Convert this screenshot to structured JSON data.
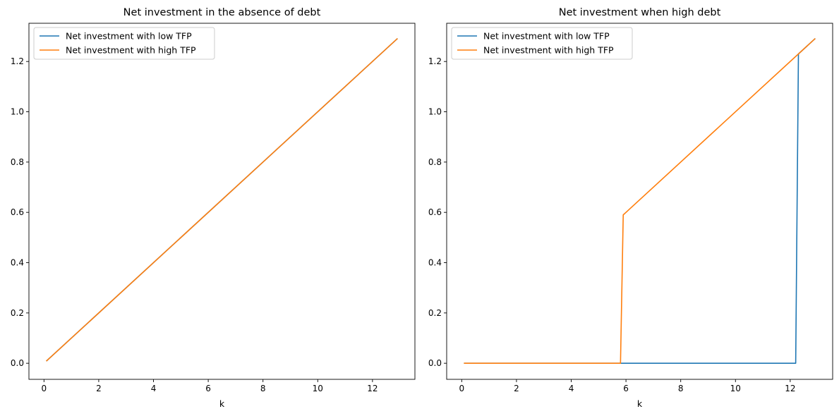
{
  "chart_data": [
    {
      "type": "line",
      "title": "Net investment in the absence of debt",
      "xlabel": "k",
      "ylabel": "",
      "xlim": [
        -0.55,
        13.55
      ],
      "ylim": [
        -0.064,
        1.352
      ],
      "xticks": [
        0,
        2,
        4,
        6,
        8,
        10,
        12
      ],
      "yticks": [
        0.0,
        0.2,
        0.4,
        0.6,
        0.8,
        1.0,
        1.2
      ],
      "xtick_labels": [
        "0",
        "2",
        "4",
        "6",
        "8",
        "10",
        "12"
      ],
      "ytick_labels": [
        "0.0",
        "0.2",
        "0.4",
        "0.6",
        "0.8",
        "1.0",
        "1.2"
      ],
      "grid": false,
      "legend": "upper left",
      "series": [
        {
          "name": "Net investment with low TFP",
          "color": "#1f77b4",
          "x": [
            0.1,
            12.9
          ],
          "y": [
            0.01,
            1.29
          ]
        },
        {
          "name": "Net investment with high TFP",
          "color": "#ff7f0e",
          "x": [
            0.1,
            12.9
          ],
          "y": [
            0.01,
            1.29
          ]
        }
      ]
    },
    {
      "type": "line",
      "title": "Net investment when high debt",
      "xlabel": "k",
      "ylabel": "",
      "xlim": [
        -0.55,
        13.55
      ],
      "ylim": [
        -0.064,
        1.352
      ],
      "xticks": [
        0,
        2,
        4,
        6,
        8,
        10,
        12
      ],
      "yticks": [
        0.0,
        0.2,
        0.4,
        0.6,
        0.8,
        1.0,
        1.2
      ],
      "xtick_labels": [
        "0",
        "2",
        "4",
        "6",
        "8",
        "10",
        "12"
      ],
      "ytick_labels": [
        "0.0",
        "0.2",
        "0.4",
        "0.6",
        "0.8",
        "1.0",
        "1.2"
      ],
      "grid": false,
      "legend": "upper left",
      "series": [
        {
          "name": "Net investment with low TFP",
          "color": "#1f77b4",
          "x": [
            0.1,
            12.2,
            12.3,
            12.9
          ],
          "y": [
            0.0,
            0.0,
            1.23,
            1.29
          ]
        },
        {
          "name": "Net investment with high TFP",
          "color": "#ff7f0e",
          "x": [
            0.1,
            5.8,
            5.9,
            12.9
          ],
          "y": [
            0.0,
            0.0,
            0.59,
            1.29
          ]
        }
      ]
    }
  ]
}
